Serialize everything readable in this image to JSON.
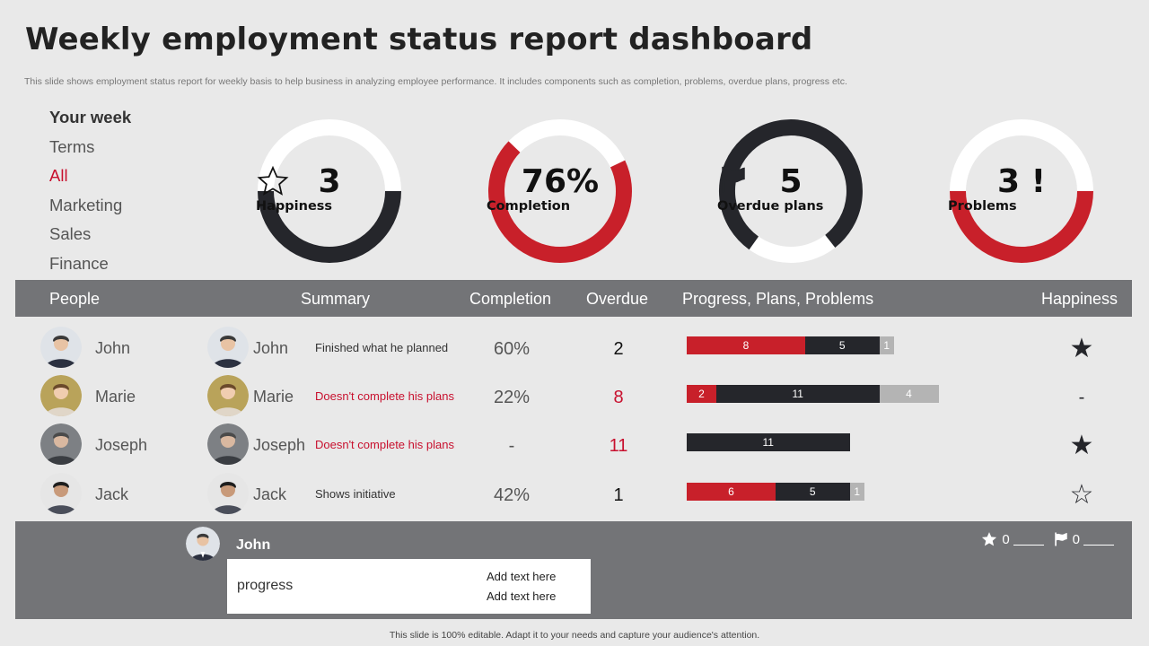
{
  "title": "Weekly employment status report dashboard",
  "subtitle": "This slide shows employment status report for weekly basis to help business in analyzing employee performance. It includes components such as completion, problems, overdue plans, progress etc.",
  "filters": {
    "header": "Your week",
    "items": [
      "Terms",
      "All",
      "Marketing",
      "Sales",
      "Finance"
    ],
    "active": "All"
  },
  "colors": {
    "accent": "#c8202a",
    "dark": "#25262b",
    "grey": "#737477",
    "light": "#b4b4b4"
  },
  "kpis": [
    {
      "value": "3",
      "icon": "star-outline-icon",
      "label": "Happiness",
      "fill_fraction": 0.5,
      "color": "#25262b"
    },
    {
      "value": "76%",
      "icon": "",
      "label": "Completion",
      "fill_fraction": 0.76,
      "color": "#c8202a"
    },
    {
      "value": "5",
      "icon": "flag-icon",
      "label": "Overdue plans",
      "fill_fraction": 0.75,
      "color": "#25262b"
    },
    {
      "value": "3 !",
      "icon": "",
      "label": "Problems",
      "fill_fraction": 0.5,
      "color": "#c8202a"
    }
  ],
  "table": {
    "headers": {
      "people": "People",
      "summary": "Summary",
      "completion": "Completion",
      "overdue": "Overdue",
      "ppp": "Progress, Plans, Problems",
      "happiness": "Happiness"
    },
    "rows": [
      {
        "name": "John",
        "summary": "Finished what he planned",
        "summary_alert": false,
        "completion": "60%",
        "overdue": "2",
        "overdue_alert": false,
        "progress": 8,
        "plans": 5,
        "problems": 1,
        "happiness": "★"
      },
      {
        "name": "Marie",
        "summary": "Doesn't complete his plans",
        "summary_alert": true,
        "completion": "22%",
        "overdue": "8",
        "overdue_alert": true,
        "progress": 2,
        "plans": 11,
        "problems": 4,
        "happiness": "-"
      },
      {
        "name": "Joseph",
        "summary": "Doesn't complete his plans",
        "summary_alert": true,
        "completion": "-",
        "overdue": "11",
        "overdue_alert": true,
        "progress": 0,
        "plans": 11,
        "problems": 0,
        "happiness": "★"
      },
      {
        "name": "Jack",
        "summary": "Shows initiative",
        "summary_alert": false,
        "completion": "42%",
        "overdue": "1",
        "overdue_alert": false,
        "progress": 6,
        "plans": 5,
        "problems": 1,
        "happiness": "☆"
      }
    ]
  },
  "footer": {
    "name": "John",
    "card_label": "progress",
    "notes": [
      "Add text here",
      "Add text here"
    ],
    "star_count": "0",
    "flag_count": "0"
  },
  "bottom_note": "This slide is 100% editable. Adapt it to your needs and capture your audience's attention."
}
